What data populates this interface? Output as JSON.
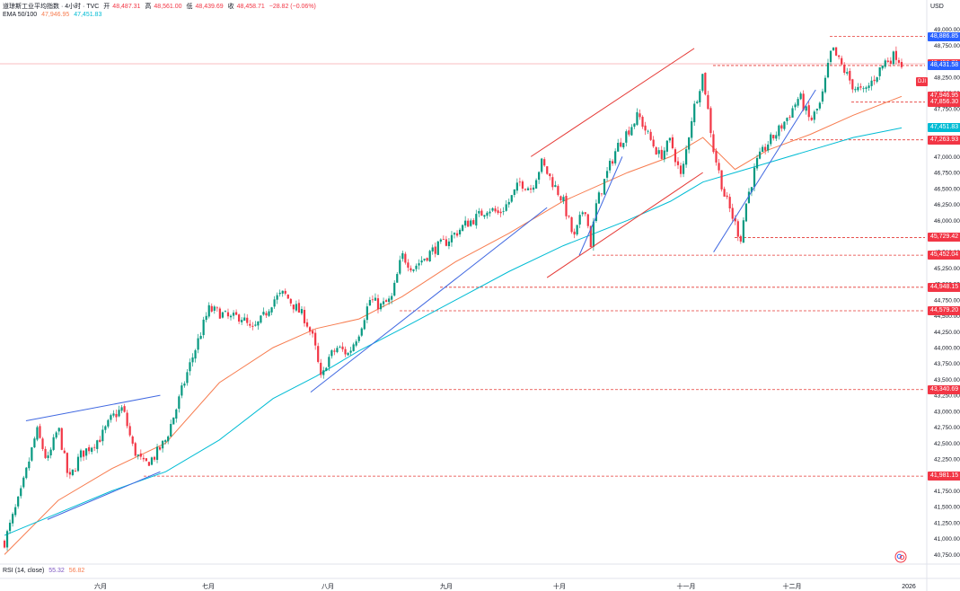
{
  "header": {
    "title": "道琼斯工业平均指数 · 4小时 · TVC",
    "open_label": "开",
    "open": "48,487.31",
    "high_label": "高",
    "high": "48,561.00",
    "low_label": "低",
    "low": "48,439.69",
    "close_label": "收",
    "close": "48,458.71",
    "change": "−28.82 (−0.06%)"
  },
  "ema_legend": {
    "label": "EMA 50/100",
    "ema50": "47,946.95",
    "ema100": "47,451.83"
  },
  "rsi_legend": {
    "label": "RSI (14, close)",
    "rsi": "55.32",
    "ma": "56.82"
  },
  "currency": "USD",
  "ticker_tag": "DJI",
  "price_badges": [
    {
      "text": "48,886.85",
      "color": "#2962ff",
      "value": 48886.85
    },
    {
      "text": "48,458.71",
      "color": "#f23645",
      "value": 48458.71
    },
    {
      "text": "48,431.58",
      "color": "#2962ff",
      "value": 48431.58
    },
    {
      "text": "47,946.95",
      "color": "#f23645",
      "value": 47946.95
    },
    {
      "text": "47,856.30",
      "color": "#f23645",
      "value": 47856.3
    },
    {
      "text": "47,451.83",
      "color": "#00bcd4",
      "value": 47451.83
    },
    {
      "text": "47,263.93",
      "color": "#f23645",
      "value": 47263.93
    },
    {
      "text": "45,729.42",
      "color": "#f23645",
      "value": 45729.42
    },
    {
      "text": "45,452.04",
      "color": "#f23645",
      "value": 45452.04
    },
    {
      "text": "44,948.15",
      "color": "#f23645",
      "value": 44948.15
    },
    {
      "text": "44,579.20",
      "color": "#f23645",
      "value": 44579.2
    },
    {
      "text": "43,340.69",
      "color": "#f23645",
      "value": 43340.69
    },
    {
      "text": "41,981.15",
      "color": "#f23645",
      "value": 41981.15
    }
  ],
  "chart_data": {
    "type": "candlestick",
    "title": "道琼斯工业平均指数 · 4小时 · TVC",
    "currency": "USD",
    "ylim": [
      40600,
      49150
    ],
    "y_ticks": [
      40750,
      41000,
      41250,
      41500,
      41750,
      42000,
      42250,
      42500,
      42750,
      43000,
      43250,
      43500,
      43750,
      44000,
      44250,
      44500,
      44750,
      45000,
      45250,
      45500,
      45750,
      46000,
      46250,
      46500,
      46750,
      47000,
      47250,
      47500,
      47750,
      48000,
      48250,
      48500,
      48750,
      49000
    ],
    "x_labels": [
      "六月",
      "七月",
      "八月",
      "九月",
      "十月",
      "十一月",
      "十二月",
      "2026"
    ],
    "grid": false,
    "close_path": [
      [
        0,
        40950
      ],
      [
        1.5,
        41700
      ],
      [
        3,
        42700
      ],
      [
        4,
        42200
      ],
      [
        5,
        42750
      ],
      [
        6,
        41900
      ],
      [
        7,
        42300
      ],
      [
        8,
        42450
      ],
      [
        9,
        42600
      ],
      [
        10,
        42900
      ],
      [
        11,
        43050
      ],
      [
        12,
        42400
      ],
      [
        13,
        42150
      ],
      [
        14,
        42300
      ],
      [
        15,
        42550
      ],
      [
        16,
        43050
      ],
      [
        17,
        43600
      ],
      [
        18,
        44100
      ],
      [
        19,
        44600
      ],
      [
        20,
        44550
      ],
      [
        21,
        44450
      ],
      [
        22,
        44500
      ],
      [
        23,
        44250
      ],
      [
        24,
        44450
      ],
      [
        25,
        44750
      ],
      [
        26,
        44850
      ],
      [
        27,
        44650
      ],
      [
        28,
        44450
      ],
      [
        28.8,
        44100
      ],
      [
        29.5,
        43450
      ],
      [
        30,
        43800
      ],
      [
        31,
        44000
      ],
      [
        32,
        43900
      ],
      [
        33,
        44250
      ],
      [
        34,
        44750
      ],
      [
        35,
        44650
      ],
      [
        36,
        44750
      ],
      [
        37,
        45450
      ],
      [
        38,
        45250
      ],
      [
        39,
        45400
      ],
      [
        40,
        45550
      ],
      [
        41,
        45650
      ],
      [
        42,
        45800
      ],
      [
        43,
        45950
      ],
      [
        44,
        46050
      ],
      [
        45,
        46200
      ],
      [
        46,
        46100
      ],
      [
        47,
        46300
      ],
      [
        48,
        46600
      ],
      [
        49,
        46500
      ],
      [
        50,
        46900
      ],
      [
        51,
        46600
      ],
      [
        52,
        46300
      ],
      [
        53,
        45700
      ],
      [
        54,
        46250
      ],
      [
        54.6,
        45600
      ],
      [
        55,
        46200
      ],
      [
        56,
        46700
      ],
      [
        57,
        47150
      ],
      [
        58,
        47400
      ],
      [
        59,
        47650
      ],
      [
        60,
        47300
      ],
      [
        61,
        47000
      ],
      [
        62,
        47250
      ],
      [
        63,
        46650
      ],
      [
        64,
        47650
      ],
      [
        65,
        48300
      ],
      [
        66,
        47100
      ],
      [
        67,
        46400
      ],
      [
        68,
        45950
      ],
      [
        68.5,
        45700
      ],
      [
        69,
        46250
      ],
      [
        70,
        46900
      ],
      [
        71,
        47200
      ],
      [
        72,
        47400
      ],
      [
        73,
        47650
      ],
      [
        74,
        47950
      ],
      [
        75,
        47550
      ],
      [
        76,
        47850
      ],
      [
        77,
        48700
      ],
      [
        78,
        48400
      ],
      [
        79,
        48100
      ],
      [
        80,
        48000
      ],
      [
        81,
        48250
      ],
      [
        82,
        48500
      ],
      [
        83,
        48600
      ],
      [
        83.5,
        48458.71
      ]
    ],
    "series": [
      {
        "name": "EMA 50",
        "color": "#f77c4f",
        "value": 47946.95,
        "points": [
          [
            0,
            40750
          ],
          [
            5,
            41600
          ],
          [
            10,
            42100
          ],
          [
            15,
            42500
          ],
          [
            20,
            43450
          ],
          [
            25,
            44000
          ],
          [
            29,
            44300
          ],
          [
            33,
            44450
          ],
          [
            37,
            44800
          ],
          [
            42,
            45350
          ],
          [
            47,
            45800
          ],
          [
            52,
            46300
          ],
          [
            58,
            46750
          ],
          [
            62,
            47000
          ],
          [
            65,
            47300
          ],
          [
            68,
            46800
          ],
          [
            71,
            47100
          ],
          [
            75,
            47350
          ],
          [
            79,
            47650
          ],
          [
            83.5,
            47946.95
          ]
        ]
      },
      {
        "name": "EMA 100",
        "color": "#00bcd4",
        "value": 47451.83,
        "points": [
          [
            0,
            41050
          ],
          [
            5,
            41400
          ],
          [
            10,
            41750
          ],
          [
            15,
            42050
          ],
          [
            20,
            42550
          ],
          [
            25,
            43200
          ],
          [
            29,
            43550
          ],
          [
            33,
            43950
          ],
          [
            37,
            44300
          ],
          [
            42,
            44750
          ],
          [
            47,
            45200
          ],
          [
            52,
            45600
          ],
          [
            58,
            46000
          ],
          [
            62,
            46300
          ],
          [
            65,
            46600
          ],
          [
            68,
            46750
          ],
          [
            71,
            46900
          ],
          [
            75,
            47100
          ],
          [
            79,
            47300
          ],
          [
            83.5,
            47451.83
          ]
        ]
      }
    ],
    "horizontal_levels": [
      48886.85,
      48431.58,
      47856.3,
      47263.93,
      45729.42,
      45452.04,
      44948.15,
      44579.2,
      43340.69,
      41981.15
    ],
    "trendlines": [
      {
        "color": "#4169e1",
        "from": [
          2,
          42850
        ],
        "to": [
          14.5,
          43250
        ]
      },
      {
        "color": "#4169e1",
        "from": [
          4,
          41300
        ],
        "to": [
          14.5,
          42050
        ]
      },
      {
        "color": "#4169e1",
        "from": [
          28.5,
          43300
        ],
        "to": [
          50.5,
          46200
        ]
      },
      {
        "color": "#4169e1",
        "from": [
          53.5,
          45450
        ],
        "to": [
          57.5,
          47000
        ]
      },
      {
        "color": "#4169e1",
        "from": [
          66,
          45500
        ],
        "to": [
          75.5,
          48050
        ]
      },
      {
        "color": "#e53935",
        "from": [
          49,
          47000
        ],
        "to": [
          64.2,
          48700
        ]
      },
      {
        "color": "#e53935",
        "from": [
          50.5,
          45100
        ],
        "to": [
          65,
          46750
        ]
      }
    ],
    "rsi": {
      "label": "RSI (14, close)",
      "value": 55.32,
      "ma": 56.82
    }
  }
}
